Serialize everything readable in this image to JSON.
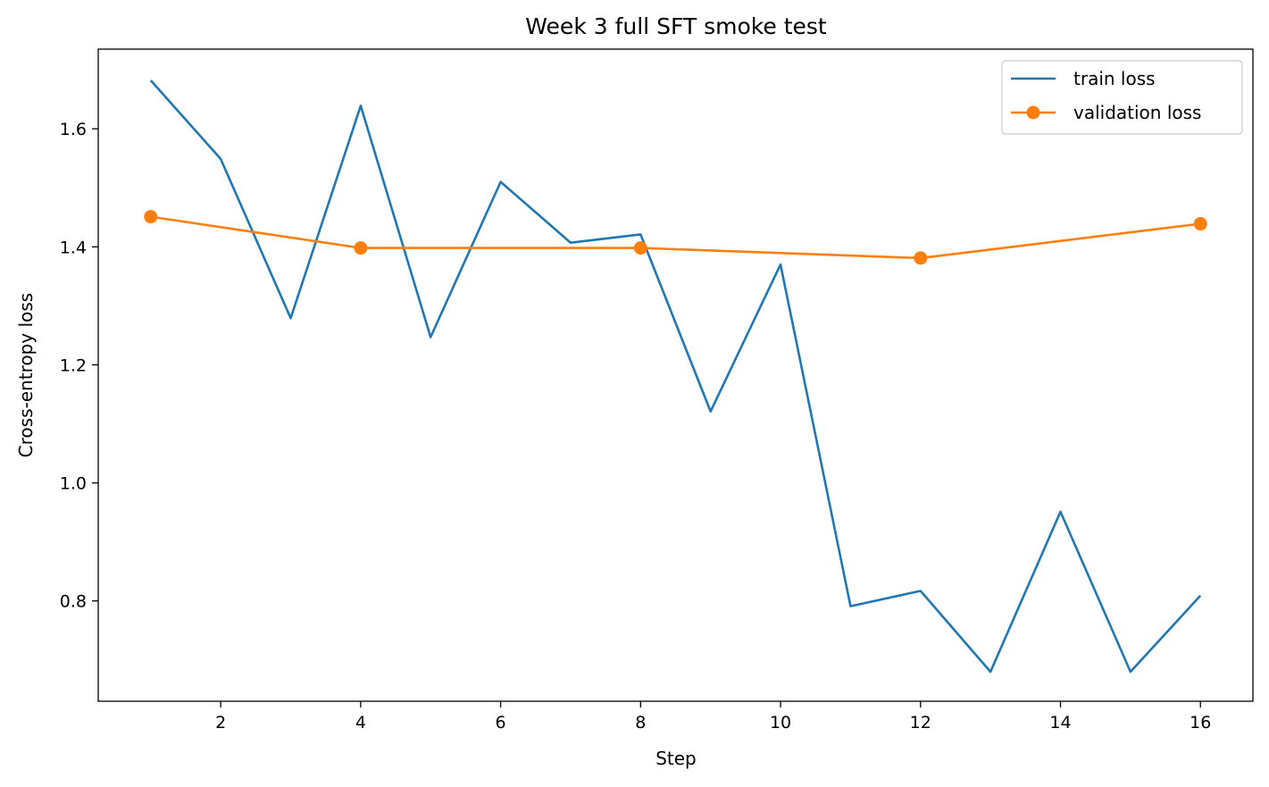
{
  "chart_data": {
    "type": "line",
    "title": "Week 3 full SFT smoke test",
    "xlabel": "Step",
    "ylabel": "Cross-entropy loss",
    "xlim": [
      0.25,
      16.75
    ],
    "ylim": [
      0.63,
      1.735
    ],
    "xticks": [
      2,
      4,
      6,
      8,
      10,
      12,
      14,
      16
    ],
    "yticks": [
      0.8,
      1.0,
      1.2,
      1.4,
      1.6
    ],
    "ytick_labels": [
      "0.8",
      "1.0",
      "1.2",
      "1.4",
      "1.6"
    ],
    "grid": false,
    "legend_position": "top-right",
    "series": [
      {
        "name": "train loss",
        "color": "#1f77b4",
        "marker": "none",
        "x": [
          1,
          2,
          3,
          4,
          5,
          6,
          7,
          8,
          9,
          10,
          11,
          12,
          13,
          14,
          15,
          16
        ],
        "y": [
          1.682,
          1.549,
          1.279,
          1.639,
          1.247,
          1.51,
          1.407,
          1.421,
          1.121,
          1.37,
          0.791,
          0.817,
          0.68,
          0.951,
          0.68,
          0.809
        ]
      },
      {
        "name": "validation loss",
        "color": "#ff7f0e",
        "marker": "circle",
        "x": [
          1,
          4,
          8,
          12,
          16
        ],
        "y": [
          1.451,
          1.398,
          1.398,
          1.381,
          1.439
        ]
      }
    ]
  }
}
